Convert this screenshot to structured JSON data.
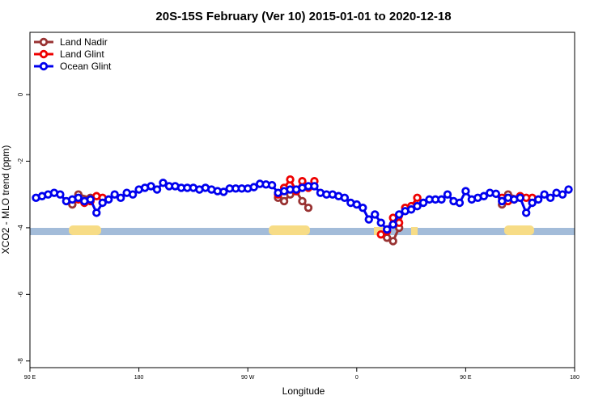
{
  "chart_data": {
    "type": "line",
    "title": "20S-15S February (Ver 10)   2015-01-01 to 2020-12-18",
    "xlabel": "Longitude",
    "ylabel": "XCO2 - MLO trend (ppm)",
    "xlim": [
      90,
      540
    ],
    "ylim": [
      -8.2,
      1.87
    ],
    "xticks": [
      {
        "value": 90,
        "label": "90 E"
      },
      {
        "value": 180,
        "label": "180"
      },
      {
        "value": 270,
        "label": "90 W"
      },
      {
        "value": 360,
        "label": "0"
      },
      {
        "value": 450,
        "label": "90 E"
      },
      {
        "value": 540,
        "label": "180"
      }
    ],
    "yticks": [
      0,
      -2,
      -4,
      -6,
      -8
    ],
    "legend": "upper left",
    "series": [
      {
        "name": "Land Nadir",
        "color": "#993333",
        "x": [
          125,
          130,
          140,
          200,
          295,
          300,
          305,
          310,
          315,
          320,
          350,
          385,
          390,
          395,
          450,
          480,
          485,
          495
        ],
        "values": [
          -3.3,
          -3.0,
          -3.1,
          null,
          -3.1,
          -3.2,
          -3.0,
          -2.9,
          -3.2,
          -3.4,
          null,
          -4.3,
          -4.4,
          -4.0,
          null,
          -3.3,
          -3.0,
          -3.1
        ]
      },
      {
        "name": "Land Glint",
        "color": "#ee0000",
        "x": [
          130,
          135,
          140,
          145,
          150,
          200,
          295,
          300,
          305,
          310,
          315,
          320,
          325,
          350,
          380,
          385,
          390,
          395,
          400,
          405,
          410,
          450,
          480,
          485,
          490,
          495,
          500,
          505
        ],
        "values": [
          -3.15,
          -3.25,
          -3.2,
          -3.05,
          -3.1,
          null,
          -3.0,
          -2.8,
          -2.55,
          -2.9,
          -2.6,
          -2.8,
          -2.6,
          null,
          -4.2,
          -4.1,
          -3.7,
          -3.85,
          -3.4,
          -3.35,
          -3.1,
          null,
          -3.1,
          -3.2,
          -3.15,
          -3.05,
          -3.1,
          -3.1
        ]
      },
      {
        "name": "Ocean Glint",
        "color": "#0000ee",
        "x": [
          95,
          100,
          105,
          110,
          115,
          120,
          125,
          130,
          135,
          140,
          145,
          150,
          155,
          160,
          165,
          170,
          175,
          180,
          185,
          190,
          195,
          200,
          205,
          210,
          215,
          220,
          225,
          230,
          235,
          240,
          245,
          250,
          255,
          260,
          265,
          270,
          275,
          280,
          285,
          290,
          295,
          300,
          305,
          310,
          315,
          320,
          325,
          330,
          335,
          340,
          345,
          350,
          355,
          360,
          365,
          370,
          375,
          380,
          385,
          390,
          395,
          400,
          405,
          410,
          415,
          420,
          425,
          430,
          435,
          440,
          445,
          450,
          455,
          460,
          465,
          470,
          475,
          480,
          485,
          490,
          495,
          500,
          505,
          510,
          515,
          520,
          525,
          530,
          535
        ],
        "values": [
          -3.1,
          -3.05,
          -3.0,
          -2.95,
          -3.0,
          -3.2,
          -3.15,
          -3.1,
          -3.2,
          -3.15,
          -3.55,
          -3.25,
          -3.15,
          -3.0,
          -3.1,
          -2.95,
          -3.0,
          -2.85,
          -2.8,
          -2.75,
          -2.85,
          -2.65,
          -2.75,
          -2.75,
          -2.8,
          -2.8,
          -2.8,
          -2.85,
          -2.8,
          -2.85,
          -2.9,
          -2.92,
          -2.82,
          -2.82,
          -2.82,
          -2.82,
          -2.78,
          -2.68,
          -2.7,
          -2.72,
          -2.95,
          -2.9,
          -2.85,
          -2.85,
          -2.8,
          -2.75,
          -2.75,
          -2.95,
          -3.0,
          -3.0,
          -3.05,
          -3.1,
          -3.25,
          -3.3,
          -3.4,
          -3.75,
          -3.6,
          -3.85,
          -4.05,
          -3.9,
          -3.6,
          -3.5,
          -3.45,
          -3.35,
          -3.25,
          -3.15,
          -3.15,
          -3.15,
          -3.0,
          -3.2,
          -3.25,
          -2.9,
          -3.15,
          -3.1,
          -3.05,
          -2.95,
          -2.98,
          -3.2,
          -3.1,
          -3.15,
          -3.1,
          -3.55,
          -3.25,
          -3.15,
          -3.0,
          -3.1,
          -2.95,
          -3.0,
          -2.85
        ]
      }
    ]
  }
}
